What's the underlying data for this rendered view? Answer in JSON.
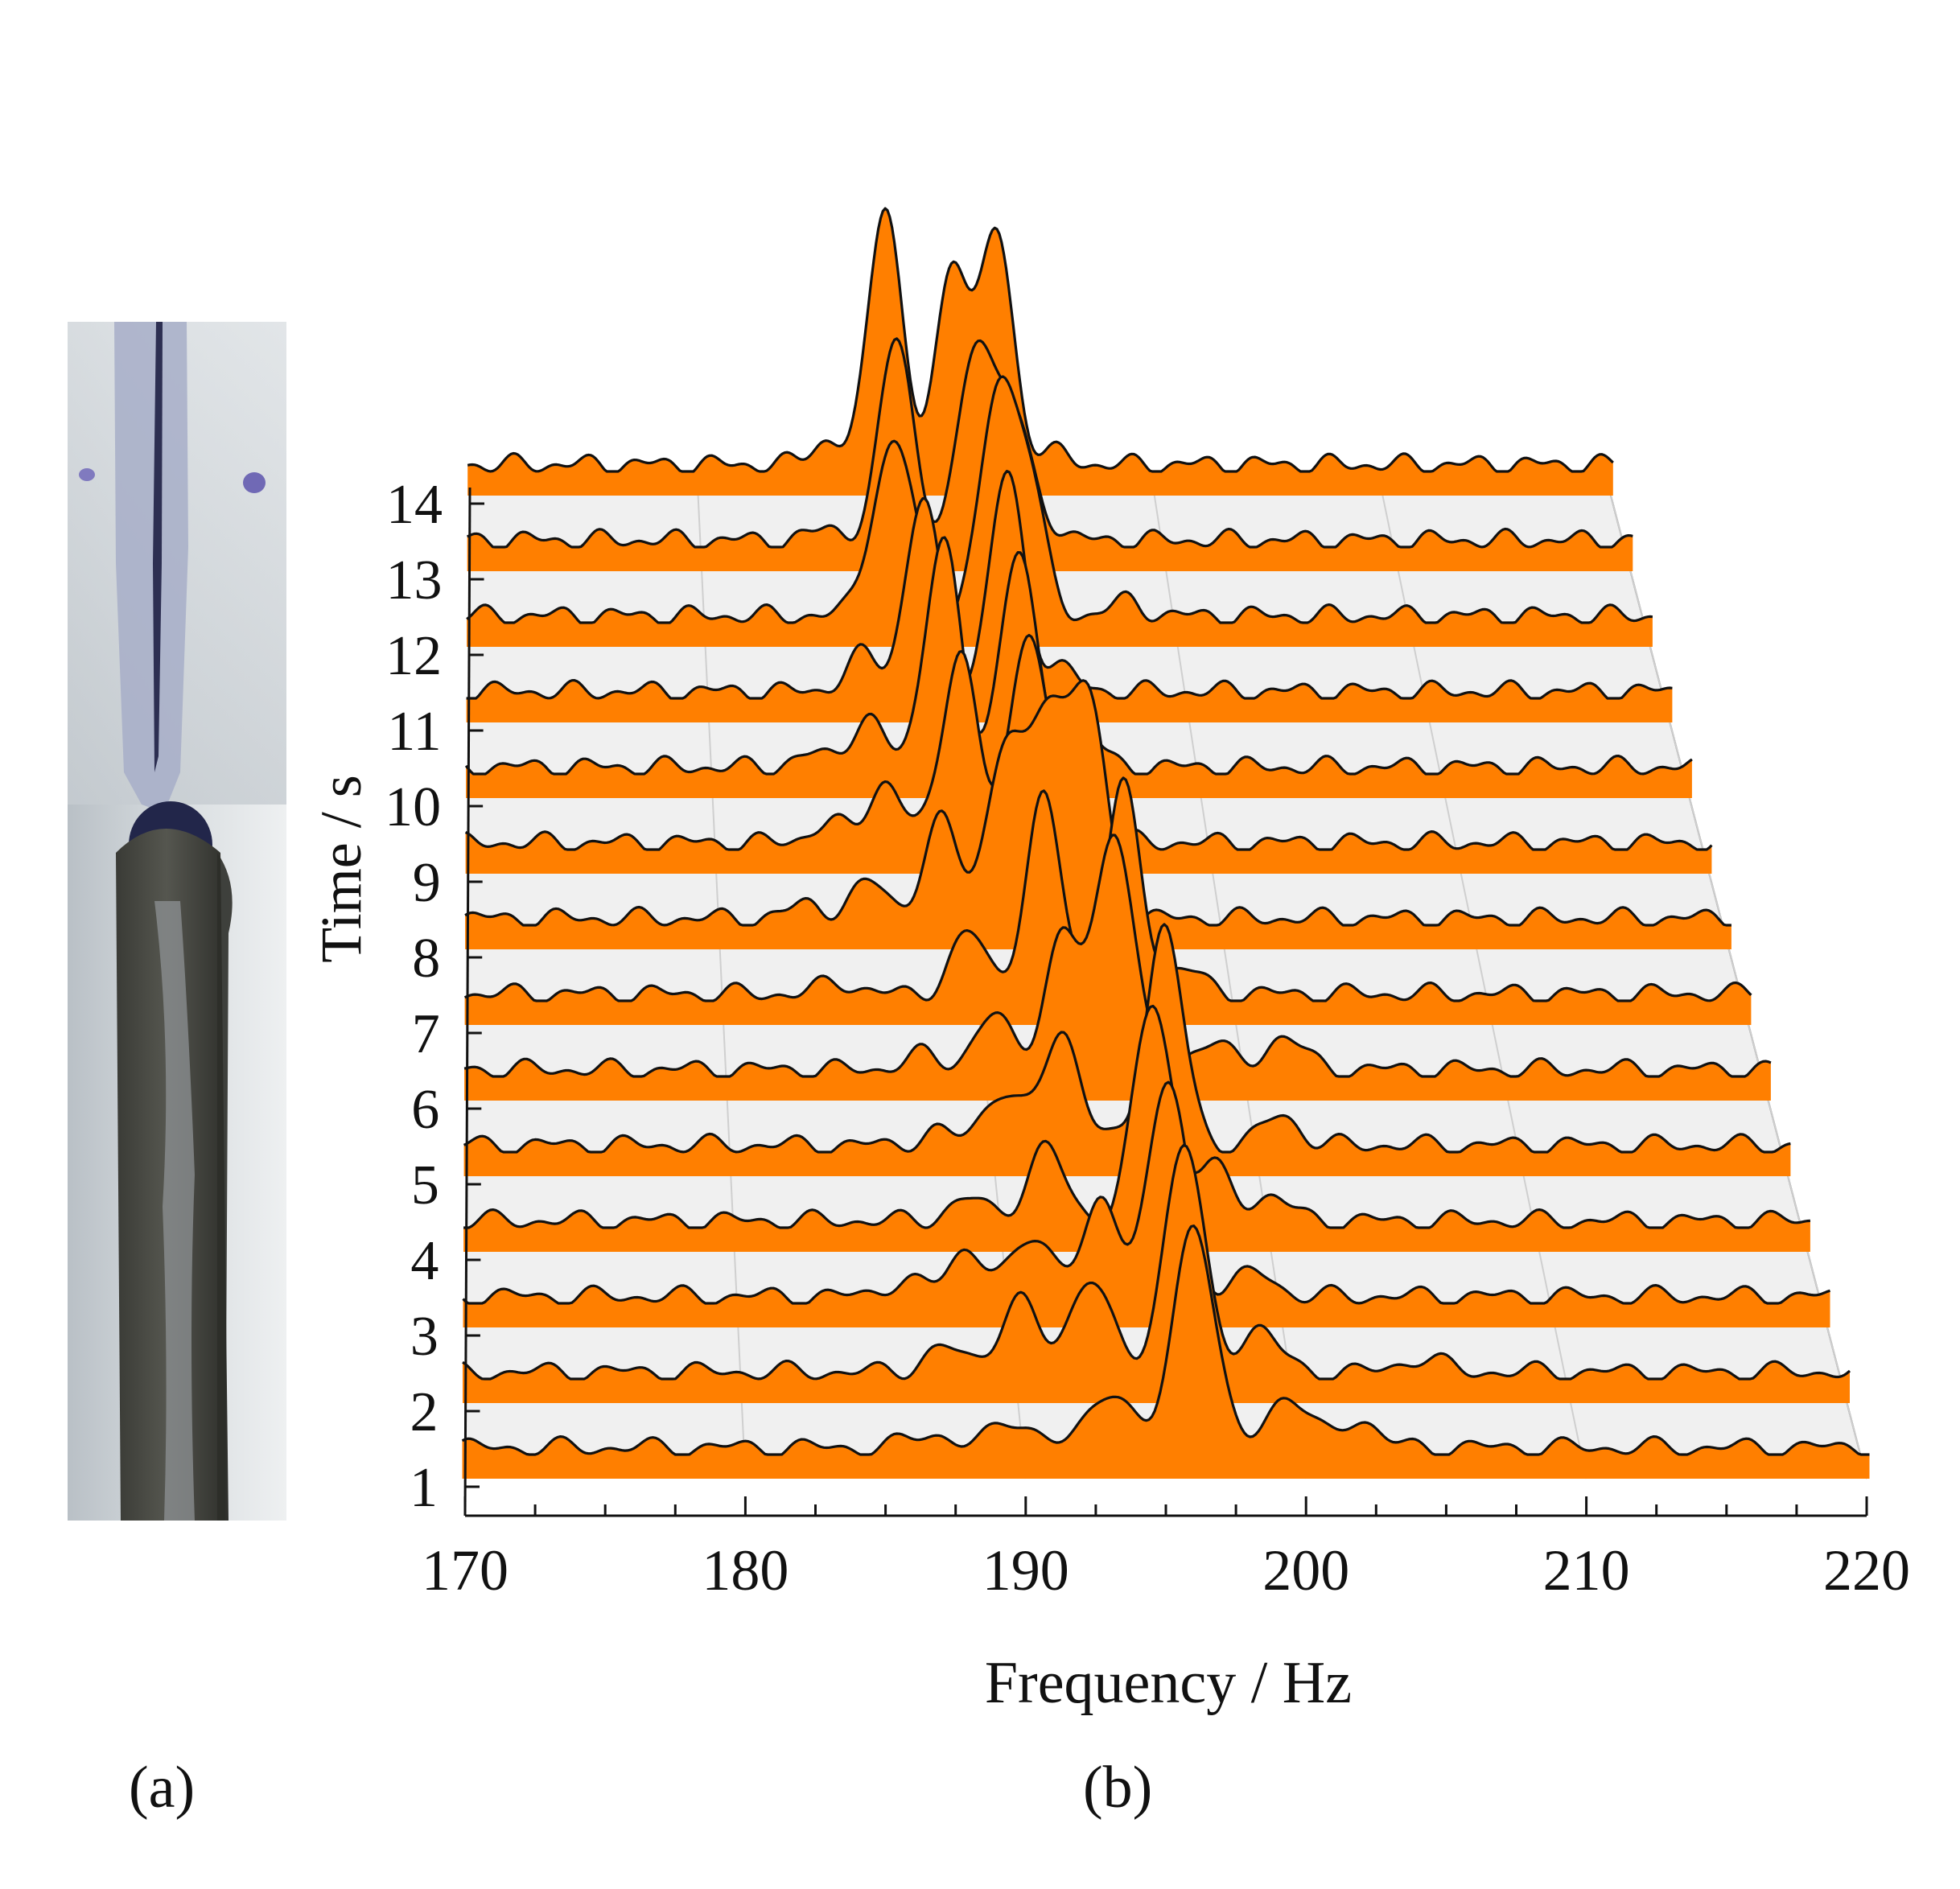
{
  "panels": {
    "a": {
      "label": "(a)",
      "image": "weld seam photograph"
    },
    "b": {
      "label": "(b)"
    }
  },
  "chart_data": {
    "type": "area",
    "style": "waterfall",
    "xlabel": "Frequency / Hz",
    "ylabel": "Time / s",
    "xlim": [
      170,
      220
    ],
    "x_ticks": [
      170,
      180,
      190,
      200,
      210,
      220
    ],
    "y_ticks": [
      1,
      2,
      3,
      4,
      5,
      6,
      7,
      8,
      9,
      10,
      11,
      12,
      13,
      14
    ],
    "grid": true,
    "fill_color": "#ff7f00",
    "line_color": "#111111",
    "floor_color": "#f0f0f0",
    "series": [
      {
        "time": 1,
        "peaks": [
          [
            193.0,
            0.25
          ],
          [
            196.0,
            0.95
          ],
          [
            199.3,
            0.22
          ],
          [
            201.8,
            0.12
          ],
          [
            189.6,
            0.12
          ],
          [
            186.6,
            0.06
          ]
        ]
      },
      {
        "time": 2,
        "peaks": [
          [
            190.0,
            0.3
          ],
          [
            192.6,
            0.4
          ],
          [
            196.0,
            0.95
          ],
          [
            198.7,
            0.18
          ],
          [
            187.3,
            0.1
          ],
          [
            204.6,
            0.06
          ]
        ]
      },
      {
        "time": 3,
        "peaks": [
          [
            188.4,
            0.2
          ],
          [
            190.9,
            0.26
          ],
          [
            193.4,
            0.38
          ],
          [
            195.8,
            0.88
          ],
          [
            199.0,
            0.1
          ],
          [
            186.0,
            0.06
          ]
        ]
      },
      {
        "time": 4,
        "peaks": [
          [
            191.6,
            0.3
          ],
          [
            195.6,
            0.9
          ],
          [
            197.8,
            0.22
          ],
          [
            200.0,
            0.1
          ],
          [
            188.7,
            0.09
          ]
        ]
      },
      {
        "time": 5,
        "peaks": [
          [
            190.2,
            0.22
          ],
          [
            192.5,
            0.48
          ],
          [
            196.4,
            0.9
          ],
          [
            200.8,
            0.12
          ],
          [
            187.8,
            0.05
          ]
        ]
      },
      {
        "time": 6,
        "peaks": [
          [
            190.2,
            0.22
          ],
          [
            192.9,
            0.55
          ],
          [
            194.9,
            1.0
          ],
          [
            198.5,
            0.12
          ],
          [
            201.4,
            0.14
          ],
          [
            187.5,
            0.06
          ]
        ]
      },
      {
        "time": 7,
        "peaks": [
          [
            189.6,
            0.25
          ],
          [
            192.5,
            0.8
          ],
          [
            195.6,
            0.85
          ],
          [
            198.0,
            0.1
          ],
          [
            184.5,
            0.05
          ]
        ]
      },
      {
        "time": 8,
        "peaks": [
          [
            186.0,
            0.15
          ],
          [
            188.8,
            0.4
          ],
          [
            191.3,
            0.7
          ],
          [
            193.0,
            0.85
          ],
          [
            194.6,
            0.9
          ],
          [
            183.5,
            0.06
          ]
        ]
      },
      {
        "time": 9,
        "peaks": [
          [
            186.8,
            0.25
          ],
          [
            189.8,
            0.8
          ],
          [
            192.6,
            0.9
          ],
          [
            195.0,
            0.3
          ],
          [
            184.5,
            0.08
          ]
        ]
      },
      {
        "time": 10,
        "peaks": [
          [
            186.3,
            0.2
          ],
          [
            189.4,
            0.95
          ],
          [
            192.5,
            0.9
          ],
          [
            195.0,
            0.2
          ],
          [
            184.0,
            0.05
          ]
        ]
      },
      {
        "time": 11,
        "peaks": [
          [
            186.4,
            0.15
          ],
          [
            188.9,
            0.8
          ],
          [
            192.4,
            0.9
          ],
          [
            194.5,
            0.1
          ]
        ]
      },
      {
        "time": 12,
        "peaks": [
          [
            187.4,
            0.4
          ],
          [
            188.4,
            0.5
          ],
          [
            192.3,
            0.85
          ],
          [
            193.6,
            0.6
          ],
          [
            197.8,
            0.06
          ]
        ]
      },
      {
        "time": 13,
        "peaks": [
          [
            188.4,
            0.85
          ],
          [
            191.8,
            0.8
          ],
          [
            193.3,
            0.5
          ],
          [
            194.5,
            0.1
          ],
          [
            185.5,
            0.05
          ]
        ]
      },
      {
        "time": 14,
        "peaks": [
          [
            185.6,
            0.1
          ],
          [
            188.2,
            1.1
          ],
          [
            191.2,
            0.85
          ],
          [
            193.1,
            0.95
          ],
          [
            195.5,
            0.05
          ]
        ]
      }
    ]
  }
}
